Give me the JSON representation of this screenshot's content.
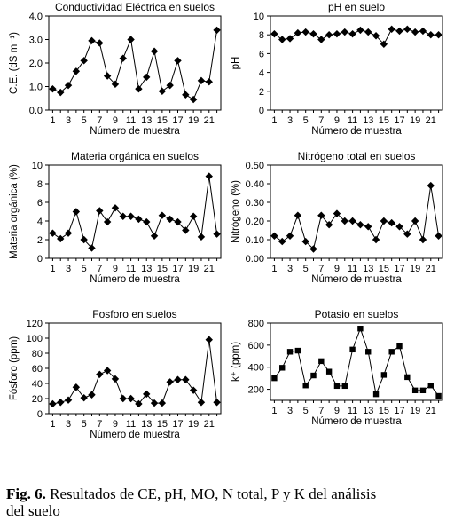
{
  "chart_data": [
    {
      "type": "line",
      "title": "Conductividad Eléctrica en suelos",
      "xlabel": "Número de muestra",
      "ylabel": "C.E. (dS m⁻¹)",
      "ylim": [
        0,
        4
      ],
      "yticks": [
        "0.0",
        "1.0",
        "2.0",
        "3.0",
        "4.0"
      ],
      "xticks": [
        1,
        3,
        5,
        7,
        9,
        11,
        13,
        15,
        17,
        19,
        21
      ],
      "marker": "diamond",
      "x": [
        1,
        2,
        3,
        4,
        5,
        6,
        7,
        8,
        9,
        10,
        11,
        12,
        13,
        14,
        15,
        16,
        17,
        18,
        19,
        20,
        21,
        22
      ],
      "values": [
        0.9,
        0.75,
        1.05,
        1.65,
        2.1,
        2.95,
        2.85,
        1.45,
        1.1,
        2.2,
        3.0,
        0.9,
        1.4,
        2.5,
        0.8,
        1.05,
        2.1,
        0.65,
        0.45,
        1.25,
        1.2,
        3.4
      ]
    },
    {
      "type": "line",
      "title": "pH en suelo",
      "xlabel": "Número de muestra",
      "ylabel": "pH",
      "ylim": [
        0,
        10
      ],
      "yticks": [
        "0",
        "2",
        "4",
        "6",
        "8",
        "10"
      ],
      "xticks": [
        1,
        3,
        5,
        7,
        9,
        11,
        13,
        15,
        17,
        19,
        21
      ],
      "marker": "diamond",
      "x": [
        1,
        2,
        3,
        4,
        5,
        6,
        7,
        8,
        9,
        10,
        11,
        12,
        13,
        14,
        15,
        16,
        17,
        18,
        19,
        20,
        21,
        22
      ],
      "values": [
        8.1,
        7.5,
        7.6,
        8.2,
        8.3,
        8.1,
        7.5,
        8.0,
        8.1,
        8.3,
        8.1,
        8.5,
        8.3,
        7.9,
        7.0,
        8.6,
        8.4,
        8.6,
        8.3,
        8.4,
        8.0,
        8.0
      ]
    },
    {
      "type": "line",
      "title": "Materia orgánica en suelos",
      "xlabel": "Número de muestra",
      "ylabel": "Materia orgánica (%)",
      "ylim": [
        0,
        10
      ],
      "yticks": [
        "0",
        "2",
        "4",
        "6",
        "8",
        "10"
      ],
      "xticks": [
        1,
        3,
        5,
        7,
        9,
        11,
        13,
        15,
        17,
        19,
        21
      ],
      "marker": "diamond",
      "x": [
        1,
        2,
        3,
        4,
        5,
        6,
        7,
        8,
        9,
        10,
        11,
        12,
        13,
        14,
        15,
        16,
        17,
        18,
        19,
        20,
        21,
        22
      ],
      "values": [
        2.7,
        2.1,
        2.7,
        5.0,
        2.0,
        1.1,
        5.1,
        3.9,
        5.4,
        4.5,
        4.5,
        4.2,
        3.9,
        2.4,
        4.6,
        4.2,
        3.9,
        3.0,
        4.5,
        2.3,
        8.8,
        2.6
      ]
    },
    {
      "type": "line",
      "title": "Nitrógeno total en suelos",
      "xlabel": "Número de muestra",
      "ylabel": "Nitrógeno (%)",
      "ylim": [
        0,
        0.5
      ],
      "yticks": [
        "0.00",
        "0.10",
        "0.20",
        "0.30",
        "0.40",
        "0.50"
      ],
      "xticks": [
        1,
        3,
        5,
        7,
        9,
        11,
        13,
        15,
        17,
        19,
        21
      ],
      "marker": "diamond",
      "x": [
        1,
        2,
        3,
        4,
        5,
        6,
        7,
        8,
        9,
        10,
        11,
        12,
        13,
        14,
        15,
        16,
        17,
        18,
        19,
        20,
        21,
        22
      ],
      "values": [
        0.12,
        0.09,
        0.12,
        0.23,
        0.09,
        0.05,
        0.23,
        0.18,
        0.24,
        0.2,
        0.2,
        0.18,
        0.17,
        0.1,
        0.2,
        0.19,
        0.17,
        0.13,
        0.2,
        0.1,
        0.39,
        0.12
      ]
    },
    {
      "type": "line",
      "title": "Fosforo en suelos",
      "xlabel": "Número de muestra",
      "ylabel": "Fósforo (ppm)",
      "ylim": [
        0,
        120
      ],
      "yticks": [
        "0",
        "20",
        "40",
        "60",
        "80",
        "100",
        "120"
      ],
      "xticks": [
        1,
        3,
        5,
        7,
        9,
        11,
        13,
        15,
        17,
        19,
        21
      ],
      "marker": "diamond",
      "x": [
        1,
        2,
        3,
        4,
        5,
        6,
        7,
        8,
        9,
        10,
        11,
        12,
        13,
        14,
        15,
        16,
        17,
        18,
        19,
        20,
        21,
        22
      ],
      "values": [
        13,
        15,
        18,
        35,
        21,
        25,
        52,
        57,
        46,
        20,
        20,
        13,
        26,
        14,
        14,
        42,
        45,
        45,
        31,
        15,
        98,
        15
      ]
    },
    {
      "type": "line",
      "title": "Potasio en suelos",
      "xlabel": "Número de muestra",
      "ylabel": "k⁺ (ppm)",
      "ylim": [
        0,
        800
      ],
      "yaxis_min_visible": 100,
      "yticks": [
        "200",
        "400",
        "600",
        "800"
      ],
      "xticks": [
        1,
        3,
        5,
        7,
        9,
        11,
        13,
        15,
        17,
        19,
        21
      ],
      "marker": "square",
      "x": [
        1,
        2,
        3,
        4,
        5,
        6,
        7,
        8,
        9,
        10,
        11,
        12,
        13,
        14,
        15,
        16,
        17,
        18,
        19,
        20,
        21,
        22
      ],
      "values": [
        300,
        395,
        540,
        550,
        235,
        325,
        455,
        360,
        230,
        230,
        560,
        750,
        540,
        155,
        330,
        540,
        590,
        310,
        190,
        190,
        235,
        140
      ]
    }
  ],
  "caption": {
    "label": "Fig. 6.",
    "text": "Resultados de CE, pH, MO, N total, P y K del análisis",
    "text2": "del suelo"
  }
}
